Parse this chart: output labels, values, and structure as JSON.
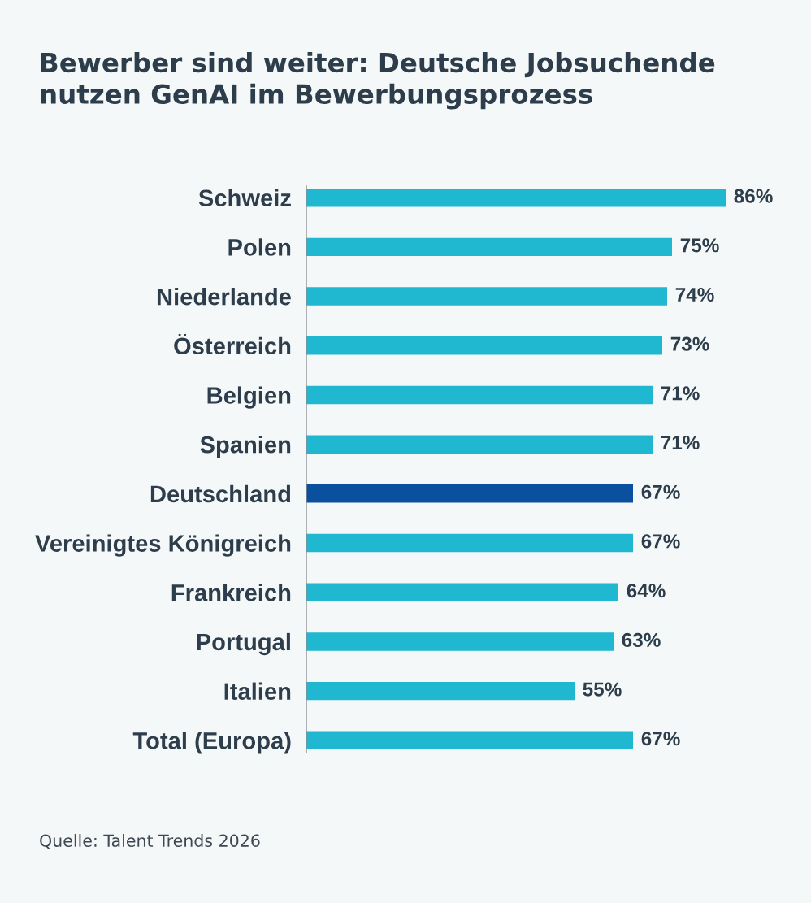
{
  "chart_data": {
    "type": "bar",
    "orientation": "horizontal",
    "title": "Bewerber sind weiter: Deutsche Jobsuchende\nnutzen GenAI im Bewerbungsprozess",
    "categories": [
      "Schweiz",
      "Polen",
      "Niederlande",
      "Österreich",
      "Belgien",
      "Spanien",
      "Deutschland",
      "Vereinigtes Königreich",
      "Frankreich",
      "Portugal",
      "Italien",
      "Total (Europa)"
    ],
    "values": [
      86,
      75,
      74,
      73,
      71,
      71,
      67,
      67,
      64,
      63,
      55,
      67
    ],
    "colors": [
      "#1fb8d0",
      "#1fb8d0",
      "#1fb8d0",
      "#1fb8d0",
      "#1fb8d0",
      "#1fb8d0",
      "#0b4f9f",
      "#1fb8d0",
      "#1fb8d0",
      "#1fb8d0",
      "#1fb8d0",
      "#1fb8d0"
    ],
    "value_labels": [
      "86%",
      "75%",
      "74%",
      "73%",
      "71%",
      "71%",
      "67%",
      "67%",
      "64%",
      "63%",
      "55%",
      "67%"
    ],
    "tick_labels": "y",
    "grid": false,
    "annotations": [
      "Quelle: Talent Trends 2026"
    ]
  }
}
